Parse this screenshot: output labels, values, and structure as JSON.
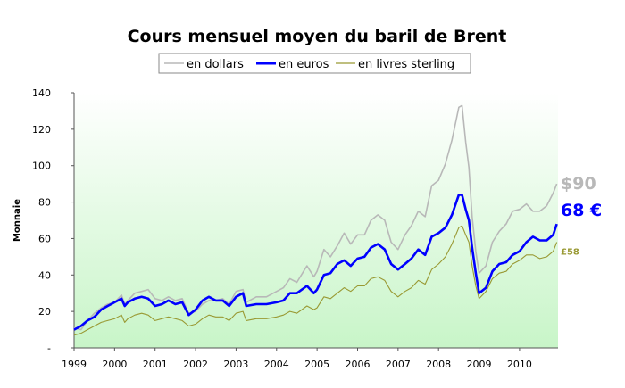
{
  "chart_data": {
    "type": "line",
    "title": "Cours mensuel moyen du baril de Brent",
    "ylabel": "Monnaie",
    "xlabel": "",
    "xlim": [
      1999.0,
      2010.95
    ],
    "ylim": [
      0,
      140
    ],
    "x_ticks": [
      "1999",
      "2000",
      "2001",
      "2002",
      "2003",
      "2004",
      "2005",
      "2006",
      "2007",
      "2008",
      "2009",
      "2010"
    ],
    "y_ticks": [
      "-",
      "20",
      "40",
      "60",
      "80",
      "100",
      "120",
      "140"
    ],
    "grid": false,
    "legend_position": "top-center",
    "background": "gradient white to light green",
    "series": [
      {
        "name": "en dollars",
        "color": "#b8b8b8",
        "end_label": "$90",
        "points": [
          [
            1999.0,
            11
          ],
          [
            1999.17,
            10
          ],
          [
            1999.33,
            15
          ],
          [
            1999.5,
            19
          ],
          [
            1999.67,
            22
          ],
          [
            1999.83,
            24
          ],
          [
            2000.0,
            25
          ],
          [
            2000.17,
            29
          ],
          [
            2000.25,
            24
          ],
          [
            2000.33,
            26
          ],
          [
            2000.5,
            30
          ],
          [
            2000.67,
            31
          ],
          [
            2000.83,
            32
          ],
          [
            2001.0,
            27
          ],
          [
            2001.17,
            26
          ],
          [
            2001.33,
            28
          ],
          [
            2001.5,
            26
          ],
          [
            2001.67,
            27
          ],
          [
            2001.83,
            19
          ],
          [
            2002.0,
            20
          ],
          [
            2002.17,
            24
          ],
          [
            2002.33,
            26
          ],
          [
            2002.5,
            26
          ],
          [
            2002.67,
            27
          ],
          [
            2002.83,
            24
          ],
          [
            2003.0,
            31
          ],
          [
            2003.17,
            32
          ],
          [
            2003.25,
            25
          ],
          [
            2003.5,
            28
          ],
          [
            2003.75,
            28
          ],
          [
            2004.0,
            31
          ],
          [
            2004.17,
            33
          ],
          [
            2004.33,
            38
          ],
          [
            2004.5,
            36
          ],
          [
            2004.75,
            45
          ],
          [
            2004.92,
            39
          ],
          [
            2005.0,
            42
          ],
          [
            2005.17,
            54
          ],
          [
            2005.33,
            50
          ],
          [
            2005.5,
            56
          ],
          [
            2005.67,
            63
          ],
          [
            2005.83,
            57
          ],
          [
            2006.0,
            62
          ],
          [
            2006.17,
            62
          ],
          [
            2006.33,
            70
          ],
          [
            2006.5,
            73
          ],
          [
            2006.67,
            70
          ],
          [
            2006.83,
            58
          ],
          [
            2007.0,
            54
          ],
          [
            2007.17,
            62
          ],
          [
            2007.33,
            67
          ],
          [
            2007.5,
            75
          ],
          [
            2007.67,
            72
          ],
          [
            2007.83,
            89
          ],
          [
            2008.0,
            92
          ],
          [
            2008.17,
            101
          ],
          [
            2008.33,
            114
          ],
          [
            2008.5,
            132
          ],
          [
            2008.58,
            133
          ],
          [
            2008.67,
            113
          ],
          [
            2008.75,
            99
          ],
          [
            2008.83,
            72
          ],
          [
            2008.92,
            53
          ],
          [
            2009.0,
            41
          ],
          [
            2009.17,
            45
          ],
          [
            2009.33,
            58
          ],
          [
            2009.5,
            64
          ],
          [
            2009.67,
            68
          ],
          [
            2009.83,
            75
          ],
          [
            2010.0,
            76
          ],
          [
            2010.17,
            79
          ],
          [
            2010.33,
            75
          ],
          [
            2010.5,
            75
          ],
          [
            2010.67,
            78
          ],
          [
            2010.83,
            85
          ],
          [
            2010.92,
            90
          ]
        ]
      },
      {
        "name": "en euros",
        "color": "#0000ff",
        "end_label": "68 €",
        "points": [
          [
            1999.0,
            10
          ],
          [
            1999.17,
            12
          ],
          [
            1999.33,
            15
          ],
          [
            1999.5,
            17
          ],
          [
            1999.67,
            21
          ],
          [
            1999.83,
            23
          ],
          [
            2000.0,
            25
          ],
          [
            2000.17,
            27
          ],
          [
            2000.25,
            23
          ],
          [
            2000.33,
            25
          ],
          [
            2000.5,
            27
          ],
          [
            2000.67,
            28
          ],
          [
            2000.83,
            27
          ],
          [
            2001.0,
            23
          ],
          [
            2001.17,
            24
          ],
          [
            2001.33,
            26
          ],
          [
            2001.5,
            24
          ],
          [
            2001.67,
            25
          ],
          [
            2001.83,
            18
          ],
          [
            2002.0,
            21
          ],
          [
            2002.17,
            26
          ],
          [
            2002.33,
            28
          ],
          [
            2002.5,
            26
          ],
          [
            2002.67,
            26
          ],
          [
            2002.83,
            23
          ],
          [
            2003.0,
            28
          ],
          [
            2003.17,
            30
          ],
          [
            2003.25,
            23
          ],
          [
            2003.5,
            24
          ],
          [
            2003.75,
            24
          ],
          [
            2004.0,
            25
          ],
          [
            2004.17,
            26
          ],
          [
            2004.33,
            30
          ],
          [
            2004.5,
            30
          ],
          [
            2004.75,
            34
          ],
          [
            2004.92,
            30
          ],
          [
            2005.0,
            32
          ],
          [
            2005.17,
            40
          ],
          [
            2005.33,
            41
          ],
          [
            2005.5,
            46
          ],
          [
            2005.67,
            48
          ],
          [
            2005.83,
            45
          ],
          [
            2006.0,
            49
          ],
          [
            2006.17,
            50
          ],
          [
            2006.33,
            55
          ],
          [
            2006.5,
            57
          ],
          [
            2006.67,
            54
          ],
          [
            2006.83,
            46
          ],
          [
            2007.0,
            43
          ],
          [
            2007.17,
            46
          ],
          [
            2007.33,
            49
          ],
          [
            2007.5,
            54
          ],
          [
            2007.67,
            51
          ],
          [
            2007.83,
            61
          ],
          [
            2008.0,
            63
          ],
          [
            2008.17,
            66
          ],
          [
            2008.33,
            73
          ],
          [
            2008.5,
            84
          ],
          [
            2008.58,
            84
          ],
          [
            2008.67,
            76
          ],
          [
            2008.75,
            70
          ],
          [
            2008.83,
            55
          ],
          [
            2008.92,
            41
          ],
          [
            2009.0,
            30
          ],
          [
            2009.17,
            33
          ],
          [
            2009.33,
            42
          ],
          [
            2009.5,
            46
          ],
          [
            2009.67,
            47
          ],
          [
            2009.83,
            51
          ],
          [
            2010.0,
            53
          ],
          [
            2010.17,
            58
          ],
          [
            2010.33,
            61
          ],
          [
            2010.5,
            59
          ],
          [
            2010.67,
            59
          ],
          [
            2010.83,
            62
          ],
          [
            2010.92,
            68
          ]
        ]
      },
      {
        "name": "en livres sterling",
        "color": "#999933",
        "end_label": "£58",
        "points": [
          [
            1999.0,
            7
          ],
          [
            1999.17,
            8
          ],
          [
            1999.33,
            10
          ],
          [
            1999.5,
            12
          ],
          [
            1999.67,
            14
          ],
          [
            1999.83,
            15
          ],
          [
            2000.0,
            16
          ],
          [
            2000.17,
            18
          ],
          [
            2000.25,
            14
          ],
          [
            2000.33,
            16
          ],
          [
            2000.5,
            18
          ],
          [
            2000.67,
            19
          ],
          [
            2000.83,
            18
          ],
          [
            2001.0,
            15
          ],
          [
            2001.17,
            16
          ],
          [
            2001.33,
            17
          ],
          [
            2001.5,
            16
          ],
          [
            2001.67,
            15
          ],
          [
            2001.83,
            12
          ],
          [
            2002.0,
            13
          ],
          [
            2002.17,
            16
          ],
          [
            2002.33,
            18
          ],
          [
            2002.5,
            17
          ],
          [
            2002.67,
            17
          ],
          [
            2002.83,
            15
          ],
          [
            2003.0,
            19
          ],
          [
            2003.17,
            20
          ],
          [
            2003.25,
            15
          ],
          [
            2003.5,
            16
          ],
          [
            2003.75,
            16
          ],
          [
            2004.0,
            17
          ],
          [
            2004.17,
            18
          ],
          [
            2004.33,
            20
          ],
          [
            2004.5,
            19
          ],
          [
            2004.75,
            23
          ],
          [
            2004.92,
            21
          ],
          [
            2005.0,
            22
          ],
          [
            2005.17,
            28
          ],
          [
            2005.33,
            27
          ],
          [
            2005.5,
            30
          ],
          [
            2005.67,
            33
          ],
          [
            2005.83,
            31
          ],
          [
            2006.0,
            34
          ],
          [
            2006.17,
            34
          ],
          [
            2006.33,
            38
          ],
          [
            2006.5,
            39
          ],
          [
            2006.67,
            37
          ],
          [
            2006.83,
            31
          ],
          [
            2007.0,
            28
          ],
          [
            2007.17,
            31
          ],
          [
            2007.33,
            33
          ],
          [
            2007.5,
            37
          ],
          [
            2007.67,
            35
          ],
          [
            2007.83,
            43
          ],
          [
            2008.0,
            46
          ],
          [
            2008.17,
            50
          ],
          [
            2008.33,
            57
          ],
          [
            2008.5,
            66
          ],
          [
            2008.58,
            67
          ],
          [
            2008.67,
            62
          ],
          [
            2008.75,
            58
          ],
          [
            2008.83,
            45
          ],
          [
            2008.92,
            34
          ],
          [
            2009.0,
            27
          ],
          [
            2009.17,
            31
          ],
          [
            2009.33,
            38
          ],
          [
            2009.5,
            41
          ],
          [
            2009.67,
            42
          ],
          [
            2009.83,
            46
          ],
          [
            2010.0,
            48
          ],
          [
            2010.17,
            51
          ],
          [
            2010.33,
            51
          ],
          [
            2010.5,
            49
          ],
          [
            2010.67,
            50
          ],
          [
            2010.83,
            53
          ],
          [
            2010.92,
            58
          ]
        ]
      }
    ]
  }
}
